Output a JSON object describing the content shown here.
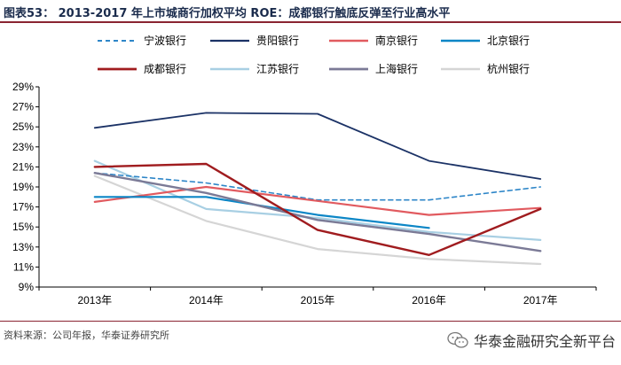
{
  "header": {
    "title": "图表53：  2013-2017 年上市城商行加权平均 ROE：成都银行触底反弹至行业高水平"
  },
  "footer": {
    "source": "资料来源：公司年报，华泰证券研究所",
    "watermark": "华泰金融研究全新平台"
  },
  "colors": {
    "rule": "#8a2432",
    "title": "#1a2b4c"
  },
  "chart_data": {
    "type": "line",
    "title": "2013-2017 年上市城商行加权平均 ROE：成都银行触底反弹至行业高水平",
    "x": [
      "2013年",
      "2014年",
      "2015年",
      "2016年",
      "2017年"
    ],
    "ylim": [
      9,
      29
    ],
    "yticks": [
      9,
      11,
      13,
      15,
      17,
      19,
      21,
      23,
      25,
      27,
      29
    ],
    "ytick_labels": [
      "9%",
      "11%",
      "13%",
      "15%",
      "17%",
      "19%",
      "21%",
      "23%",
      "25%",
      "27%",
      "29%"
    ],
    "xlabel": "",
    "ylabel": "",
    "grid": false,
    "legend": "top",
    "series": [
      {
        "name": "宁波银行",
        "color": "#2e86c8",
        "dash": true,
        "width": 1.6,
        "values": [
          20.4,
          19.4,
          17.7,
          17.7,
          19.0
        ]
      },
      {
        "name": "贵阳银行",
        "color": "#1b3266",
        "dash": false,
        "width": 1.8,
        "values": [
          24.9,
          26.4,
          26.3,
          21.6,
          19.8
        ]
      },
      {
        "name": "南京银行",
        "color": "#e15a5f",
        "dash": false,
        "width": 2.2,
        "values": [
          17.5,
          19.0,
          17.6,
          16.2,
          16.9
        ]
      },
      {
        "name": "北京银行",
        "color": "#0c86c6",
        "dash": false,
        "width": 2.2,
        "values": [
          18.0,
          18.0,
          16.2,
          14.9,
          null
        ]
      },
      {
        "name": "成都银行",
        "color": "#a01c1f",
        "dash": false,
        "width": 2.4,
        "values": [
          21.0,
          21.3,
          14.7,
          12.2,
          16.8
        ]
      },
      {
        "name": "江苏银行",
        "color": "#a8cfe3",
        "dash": false,
        "width": 2.2,
        "values": [
          21.6,
          16.8,
          15.9,
          14.5,
          13.7
        ]
      },
      {
        "name": "上海银行",
        "color": "#7b7a96",
        "dash": false,
        "width": 2.4,
        "values": [
          20.4,
          18.4,
          15.7,
          14.3,
          12.6
        ]
      },
      {
        "name": "杭州银行",
        "color": "#d5d5d5",
        "dash": false,
        "width": 2.2,
        "values": [
          20.1,
          15.6,
          12.8,
          11.8,
          11.3
        ]
      }
    ]
  }
}
